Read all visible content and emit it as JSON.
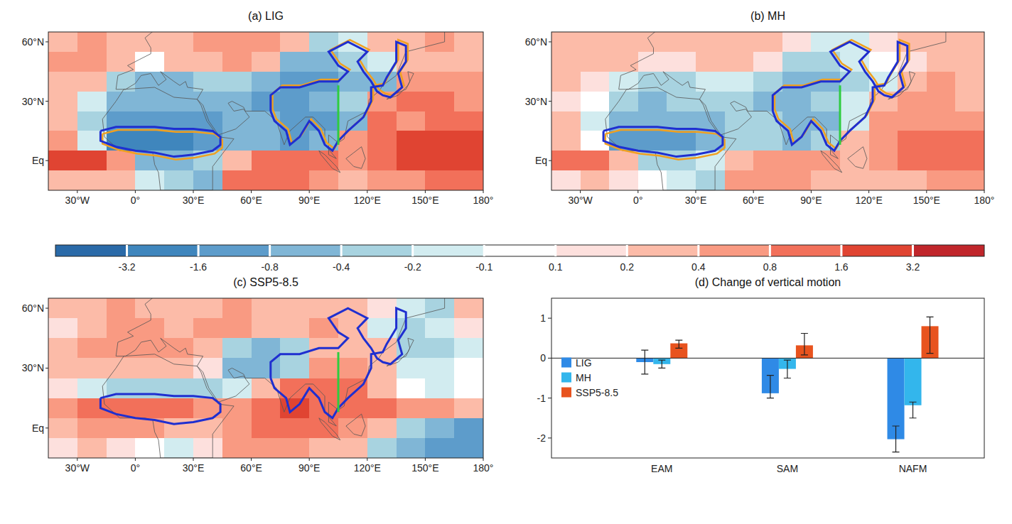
{
  "chart_data": [
    {
      "type": "heatmap",
      "title": "(a) LIG",
      "xlim": [
        -45,
        180
      ],
      "xticks": [
        {
          "value": -30,
          "label": "30°W"
        },
        {
          "value": 0,
          "label": "0°"
        },
        {
          "value": 30,
          "label": "30°E"
        },
        {
          "value": 60,
          "label": "60°E"
        },
        {
          "value": 90,
          "label": "90°E"
        },
        {
          "value": 120,
          "label": "120°E"
        },
        {
          "value": 150,
          "label": "150°E"
        },
        {
          "value": 180,
          "label": "180°"
        }
      ],
      "ylim": [
        -15,
        65
      ],
      "yticks": [
        {
          "value": 0,
          "label": "Eq"
        },
        {
          "value": 30,
          "label": "30°N"
        },
        {
          "value": 60,
          "label": "60°N"
        }
      ],
      "x": [
        -37.5,
        -22.5,
        -7.5,
        7.5,
        22.5,
        37.5,
        52.5,
        67.5,
        82.5,
        97.5,
        112.5,
        127.5,
        142.5,
        157.5,
        172.5
      ],
      "y": [
        60,
        50,
        40,
        30,
        20,
        10,
        0,
        -10
      ],
      "cells": [
        [
          0.3,
          0.4,
          0.3,
          0.2,
          0.3,
          0.5,
          0.6,
          0.4,
          0.2,
          -0.3,
          -0.2,
          0.3,
          0.3,
          0.4,
          0.3
        ],
        [
          0.5,
          0.4,
          0.3,
          -0.1,
          0.2,
          0.3,
          0.5,
          0.3,
          -0.5,
          -0.8,
          -0.3,
          -0.2,
          0.2,
          0.3,
          0.2
        ],
        [
          0.3,
          0.2,
          -0.3,
          -0.5,
          -0.6,
          -0.4,
          -0.3,
          -0.5,
          -1.0,
          -1.2,
          -0.6,
          -0.5,
          0.5,
          0.6,
          0.5
        ],
        [
          0.2,
          -0.2,
          -0.5,
          -0.8,
          -0.6,
          -0.5,
          -0.8,
          -1.0,
          -1.5,
          -0.8,
          -0.3,
          0.5,
          1.0,
          0.8,
          0.6
        ],
        [
          0.3,
          -0.4,
          -1.2,
          -1.5,
          -1.3,
          -1.2,
          -0.8,
          -0.8,
          -1.6,
          -1.0,
          -0.5,
          0.8,
          0.6,
          0.8,
          1.0
        ],
        [
          0.6,
          -0.2,
          -2.0,
          -2.5,
          -2.2,
          -1.6,
          -0.6,
          -0.8,
          -1.2,
          -0.6,
          0.4,
          1.2,
          1.8,
          2.0,
          1.6
        ],
        [
          2.5,
          2.0,
          0.5,
          -0.8,
          -0.5,
          -0.4,
          0.3,
          0.8,
          1.0,
          1.0,
          0.6,
          1.2,
          1.8,
          2.2,
          2.5
        ],
        [
          0.2,
          0.3,
          0.2,
          -0.2,
          -0.3,
          -0.5,
          0.8,
          1.2,
          1.0,
          0.6,
          0.3,
          0.4,
          0.6,
          0.8,
          1.0
        ]
      ]
    },
    {
      "type": "heatmap",
      "title": "(b) MH",
      "xlim": [
        -45,
        180
      ],
      "xticks": [
        {
          "value": -30,
          "label": "30°W"
        },
        {
          "value": 0,
          "label": "0°"
        },
        {
          "value": 30,
          "label": "30°E"
        },
        {
          "value": 60,
          "label": "60°E"
        },
        {
          "value": 90,
          "label": "90°E"
        },
        {
          "value": 120,
          "label": "120°E"
        },
        {
          "value": 150,
          "label": "150°E"
        },
        {
          "value": 180,
          "label": "180°"
        }
      ],
      "ylim": [
        -15,
        65
      ],
      "yticks": [
        {
          "value": 0,
          "label": "Eq"
        },
        {
          "value": 30,
          "label": "30°N"
        },
        {
          "value": 60,
          "label": "60°N"
        }
      ],
      "x": [
        -37.5,
        -22.5,
        -7.5,
        7.5,
        22.5,
        37.5,
        52.5,
        67.5,
        82.5,
        97.5,
        112.5,
        127.5,
        142.5,
        157.5,
        172.5
      ],
      "y": [
        60,
        50,
        40,
        30,
        20,
        10,
        0,
        -10
      ],
      "cells": [
        [
          0.2,
          0.3,
          0.2,
          0.2,
          0.2,
          0.3,
          0.3,
          0.2,
          0.1,
          -0.2,
          -0.2,
          0.1,
          0.2,
          0.2,
          0.2
        ],
        [
          0.3,
          0.3,
          0.2,
          0.1,
          0.1,
          0.2,
          0.2,
          0.1,
          -0.3,
          -0.4,
          -0.2,
          -0.1,
          0.1,
          0.2,
          0.2
        ],
        [
          0.2,
          0.1,
          -0.2,
          -0.3,
          -0.3,
          -0.2,
          -0.2,
          -0.3,
          -0.5,
          -0.5,
          -0.3,
          -0.2,
          0.3,
          0.4,
          0.3
        ],
        [
          0.1,
          -0.1,
          -0.3,
          -0.5,
          -0.4,
          -0.3,
          -0.4,
          -0.5,
          -0.8,
          -0.4,
          -0.2,
          0.3,
          0.5,
          0.4,
          0.3
        ],
        [
          0.2,
          -0.2,
          -0.6,
          -0.8,
          -0.7,
          -0.6,
          -0.4,
          -0.4,
          -0.8,
          -0.5,
          -0.2,
          0.5,
          0.4,
          0.5,
          0.6
        ],
        [
          0.3,
          -0.1,
          -1.0,
          -1.4,
          -1.2,
          -0.8,
          -0.3,
          -0.4,
          -0.6,
          -0.3,
          0.2,
          0.6,
          0.9,
          1.0,
          0.8
        ],
        [
          1.4,
          1.0,
          0.3,
          -0.4,
          -0.3,
          -0.2,
          0.2,
          0.5,
          0.5,
          0.5,
          0.3,
          0.6,
          0.8,
          1.0,
          1.2
        ],
        [
          0.1,
          0.2,
          0.1,
          -0.1,
          -0.2,
          -0.3,
          0.4,
          0.6,
          0.5,
          0.3,
          0.2,
          0.2,
          0.3,
          0.4,
          0.5
        ]
      ]
    },
    {
      "type": "heatmap",
      "title": "(c) SSP5-8.5",
      "xlim": [
        -45,
        180
      ],
      "xticks": [
        {
          "value": -30,
          "label": "30°W"
        },
        {
          "value": 0,
          "label": "0°"
        },
        {
          "value": 30,
          "label": "30°E"
        },
        {
          "value": 60,
          "label": "60°E"
        },
        {
          "value": 90,
          "label": "90°E"
        },
        {
          "value": 120,
          "label": "120°E"
        },
        {
          "value": 150,
          "label": "150°E"
        },
        {
          "value": 180,
          "label": "180°"
        }
      ],
      "ylim": [
        -15,
        65
      ],
      "yticks": [
        {
          "value": 0,
          "label": "Eq"
        },
        {
          "value": 30,
          "label": "30°N"
        },
        {
          "value": 60,
          "label": "60°N"
        }
      ],
      "x": [
        -37.5,
        -22.5,
        -7.5,
        7.5,
        22.5,
        37.5,
        52.5,
        67.5,
        82.5,
        97.5,
        112.5,
        127.5,
        142.5,
        157.5,
        172.5
      ],
      "y": [
        60,
        50,
        40,
        30,
        20,
        10,
        0,
        -10
      ],
      "cells": [
        [
          0.2,
          0.3,
          0.4,
          0.3,
          0.2,
          0.3,
          0.4,
          0.3,
          0.2,
          0.3,
          0.2,
          0.1,
          -0.2,
          -0.3,
          0.2
        ],
        [
          0.1,
          0.3,
          0.4,
          0.5,
          0.3,
          0.4,
          0.5,
          0.3,
          0.2,
          0.4,
          0.2,
          -0.2,
          -0.3,
          -0.2,
          0.1
        ],
        [
          0.3,
          0.4,
          0.5,
          0.6,
          0.5,
          0.3,
          -0.3,
          -0.8,
          -0.3,
          0.3,
          0.2,
          0.3,
          -0.3,
          -0.4,
          -0.2
        ],
        [
          0.2,
          0.3,
          0.3,
          0.2,
          0.2,
          0.1,
          -0.5,
          -0.6,
          -0.4,
          0.4,
          0.6,
          0.3,
          -0.2,
          -0.2,
          -0.1
        ],
        [
          0.1,
          -0.2,
          -0.3,
          -0.3,
          -0.4,
          -0.3,
          -0.2,
          0.3,
          0.8,
          1.0,
          0.8,
          0.2,
          -0.1,
          -0.2,
          -0.1
        ],
        [
          0.4,
          0.8,
          1.2,
          1.0,
          0.8,
          0.6,
          0.5,
          1.0,
          1.6,
          1.4,
          1.0,
          0.8,
          0.5,
          0.4,
          0.3
        ],
        [
          0.3,
          0.5,
          0.6,
          0.4,
          0.2,
          0.3,
          0.6,
          0.8,
          1.2,
          1.0,
          0.6,
          0.2,
          -0.4,
          -0.8,
          -1.2
        ],
        [
          0.1,
          0.2,
          0.1,
          -0.1,
          -0.2,
          0.1,
          0.4,
          0.6,
          0.5,
          0.3,
          0.2,
          -0.3,
          -0.8,
          -1.6,
          -1.2
        ]
      ]
    },
    {
      "type": "bar",
      "title": "(d) Change of vertical motion",
      "categories": [
        "EAM",
        "SAM",
        "NAFM"
      ],
      "series": [
        {
          "name": "LIG",
          "color": "#2f8ae6",
          "values": [
            -0.1,
            -0.88,
            -2.03
          ],
          "error_min": [
            -0.4,
            -1.0,
            -2.35
          ],
          "error_max": [
            0.2,
            -0.43,
            -1.7
          ]
        },
        {
          "name": "MH",
          "color": "#33b6ec",
          "values": [
            -0.15,
            -0.27,
            -1.18
          ],
          "error_min": [
            -0.25,
            -0.5,
            -1.5
          ],
          "error_max": [
            -0.05,
            -0.05,
            -1.1
          ]
        },
        {
          "name": "SSP5-8.5",
          "color": "#e8531e",
          "values": [
            0.37,
            0.32,
            0.8
          ],
          "error_min": [
            0.25,
            0.08,
            0.12
          ],
          "error_max": [
            0.45,
            0.62,
            1.03
          ]
        }
      ],
      "ylim": [
        -2.5,
        1.5
      ],
      "yticks": [
        -2,
        -1,
        0,
        1
      ],
      "legend": "left"
    }
  ],
  "colorbar": {
    "ticks": [
      -3.2,
      -1.6,
      -0.8,
      -0.4,
      -0.2,
      -0.1,
      0.1,
      0.2,
      0.4,
      0.8,
      1.6,
      3.2
    ],
    "colors": [
      "#2a6aa8",
      "#3f86bd",
      "#5d9ccb",
      "#80b6d6",
      "#a8d3e0",
      "#d2ecf0",
      "#ffffff",
      "#fde0dd",
      "#fcbba8",
      "#f99a82",
      "#f2705a",
      "#e04432",
      "#c0262b"
    ]
  }
}
